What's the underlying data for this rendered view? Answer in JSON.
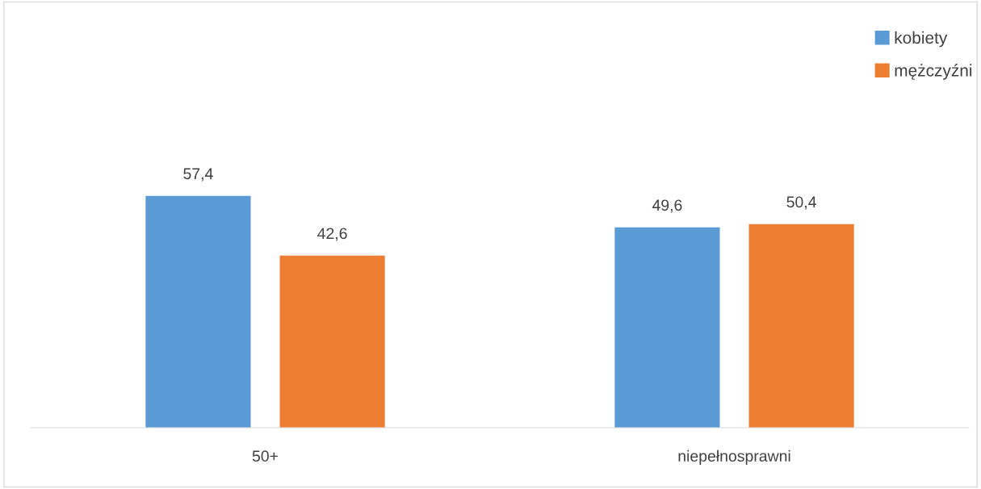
{
  "chart_data": {
    "type": "bar",
    "categories": [
      "50+",
      "niepełnosprawni"
    ],
    "series": [
      {
        "name": "kobiety",
        "color": "#5b9bd5",
        "values": [
          57.4,
          49.6
        ],
        "value_labels": [
          "57,4",
          "49,6"
        ]
      },
      {
        "name": "mężczyźni",
        "color": "#ed7d31",
        "values": [
          42.6,
          50.4
        ],
        "value_labels": [
          "42,6",
          "50,4"
        ]
      }
    ],
    "tick_labels": "x",
    "grid": false,
    "legend": "top right"
  }
}
